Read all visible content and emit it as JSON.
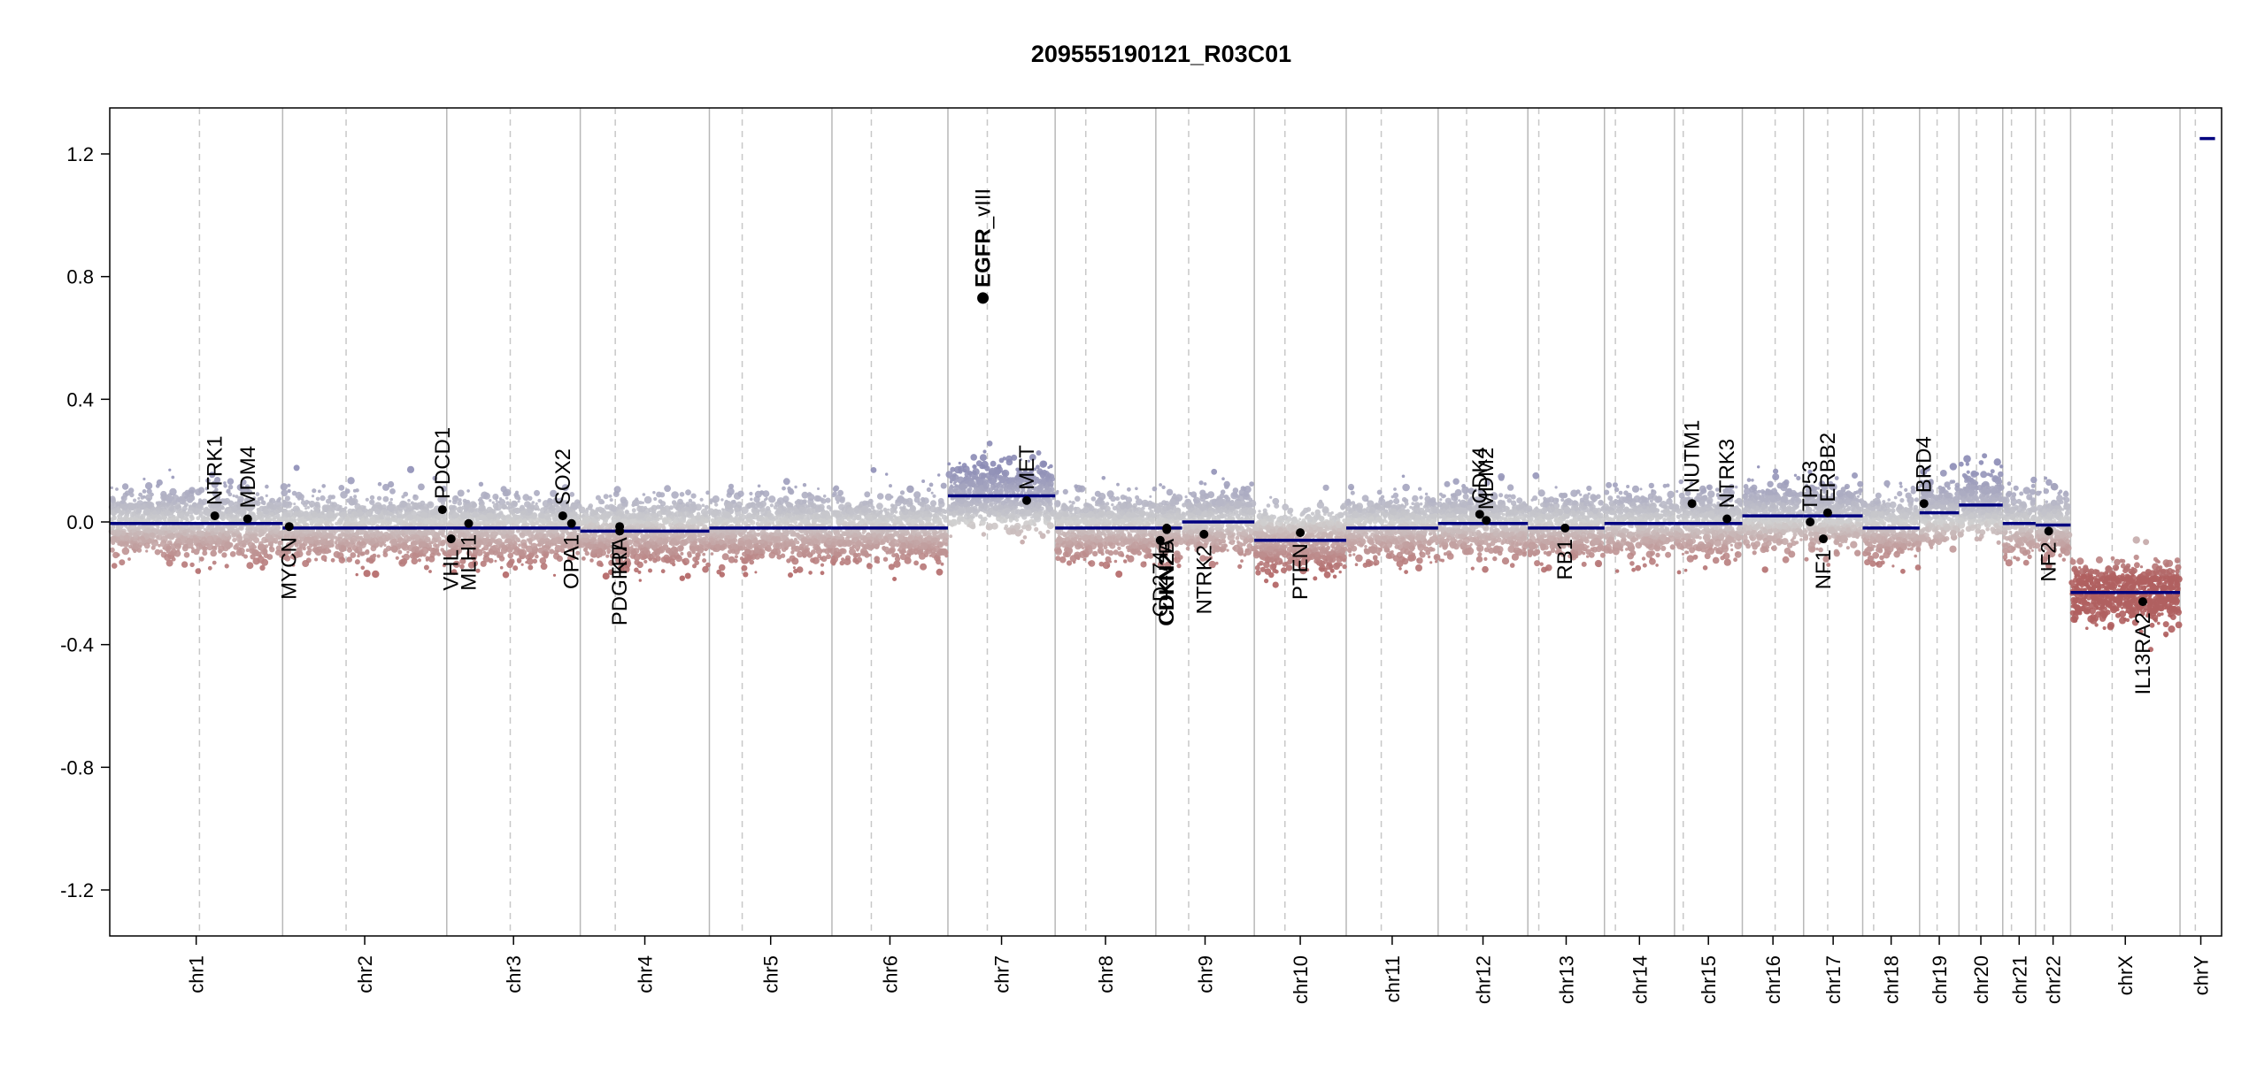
{
  "chart_data": {
    "type": "scatter",
    "title": "209555190121_R03C01",
    "xlabel": "",
    "ylabel": "",
    "ylim": [
      -1.35,
      1.35
    ],
    "yticks": [
      "1.2",
      "0.8",
      "0.4",
      "0.0",
      "-0.4",
      "-0.8",
      "-1.2"
    ],
    "ytick_values": [
      1.2,
      0.8,
      0.4,
      0.0,
      -0.4,
      -0.8,
      -1.2
    ],
    "chromosomes": [
      {
        "name": "chr1",
        "span": [
          0.0,
          7.9
        ],
        "centromere": 4.1,
        "segments": [
          {
            "from": 0.0,
            "to": 7.9,
            "value": -0.005
          }
        ]
      },
      {
        "name": "chr2",
        "span": [
          7.9,
          15.4
        ],
        "centromere": 10.8,
        "segments": [
          {
            "from": 7.9,
            "to": 15.4,
            "value": -0.02
          }
        ]
      },
      {
        "name": "chr3",
        "span": [
          15.4,
          21.5
        ],
        "centromere": 18.3,
        "segments": [
          {
            "from": 15.4,
            "to": 21.5,
            "value": -0.02
          }
        ]
      },
      {
        "name": "chr4",
        "span": [
          21.5,
          27.4
        ],
        "centromere": 23.1,
        "segments": [
          {
            "from": 21.5,
            "to": 27.4,
            "value": -0.03
          }
        ]
      },
      {
        "name": "chr5",
        "span": [
          27.4,
          33.0
        ],
        "centromere": 28.9,
        "segments": [
          {
            "from": 27.4,
            "to": 33.0,
            "value": -0.02
          }
        ]
      },
      {
        "name": "chr6",
        "span": [
          33.0,
          38.3
        ],
        "centromere": 34.8,
        "segments": [
          {
            "from": 33.0,
            "to": 38.3,
            "value": -0.02
          }
        ]
      },
      {
        "name": "chr7",
        "span": [
          38.3,
          43.2
        ],
        "centromere": 40.1,
        "segments": [
          {
            "from": 38.3,
            "to": 43.2,
            "value": 0.085
          }
        ]
      },
      {
        "name": "chr8",
        "span": [
          43.2,
          47.8
        ],
        "centromere": 44.6,
        "segments": [
          {
            "from": 43.2,
            "to": 47.8,
            "value": -0.02
          }
        ]
      },
      {
        "name": "chr9",
        "span": [
          47.8,
          52.3
        ],
        "centromere": 49.3,
        "segments": [
          {
            "from": 47.8,
            "to": 49.0,
            "value": -0.02
          },
          {
            "from": 49.0,
            "to": 52.3,
            "value": 0.0
          }
        ]
      },
      {
        "name": "chr10",
        "span": [
          52.3,
          56.5
        ],
        "centromere": 53.7,
        "segments": [
          {
            "from": 52.3,
            "to": 56.5,
            "value": -0.06
          }
        ]
      },
      {
        "name": "chr11",
        "span": [
          56.5,
          60.7
        ],
        "centromere": 58.1,
        "segments": [
          {
            "from": 56.5,
            "to": 60.7,
            "value": -0.02
          }
        ]
      },
      {
        "name": "chr12",
        "span": [
          60.7,
          64.8
        ],
        "centromere": 62.0,
        "segments": [
          {
            "from": 60.7,
            "to": 64.8,
            "value": -0.005
          }
        ]
      },
      {
        "name": "chr13",
        "span": [
          64.8,
          68.3
        ],
        "centromere": 65.3,
        "segments": [
          {
            "from": 64.8,
            "to": 68.3,
            "value": -0.02
          }
        ]
      },
      {
        "name": "chr14",
        "span": [
          68.3,
          71.5
        ],
        "centromere": 68.8,
        "segments": [
          {
            "from": 68.3,
            "to": 71.5,
            "value": -0.005
          }
        ]
      },
      {
        "name": "chr15",
        "span": [
          71.5,
          74.6
        ],
        "centromere": 71.9,
        "segments": [
          {
            "from": 71.5,
            "to": 74.6,
            "value": -0.005
          }
        ]
      },
      {
        "name": "chr16",
        "span": [
          74.6,
          77.4
        ],
        "centromere": 76.1,
        "segments": [
          {
            "from": 74.6,
            "to": 77.4,
            "value": 0.02
          }
        ]
      },
      {
        "name": "chr17",
        "span": [
          77.4,
          80.1
        ],
        "centromere": 78.5,
        "segments": [
          {
            "from": 77.4,
            "to": 80.1,
            "value": 0.02
          }
        ]
      },
      {
        "name": "chr18",
        "span": [
          80.1,
          82.7
        ],
        "centromere": 80.6,
        "segments": [
          {
            "from": 80.1,
            "to": 82.7,
            "value": -0.02
          }
        ]
      },
      {
        "name": "chr19",
        "span": [
          82.7,
          84.5
        ],
        "centromere": 83.5,
        "segments": [
          {
            "from": 82.7,
            "to": 84.5,
            "value": 0.03
          }
        ]
      },
      {
        "name": "chr20",
        "span": [
          84.5,
          86.5
        ],
        "centromere": 85.3,
        "segments": [
          {
            "from": 84.5,
            "to": 86.5,
            "value": 0.055
          }
        ]
      },
      {
        "name": "chr21",
        "span": [
          86.5,
          88.0
        ],
        "centromere": 86.9,
        "segments": [
          {
            "from": 86.5,
            "to": 88.0,
            "value": -0.005
          }
        ]
      },
      {
        "name": "chr22",
        "span": [
          88.0,
          89.6
        ],
        "centromere": 88.4,
        "segments": [
          {
            "from": 88.0,
            "to": 89.6,
            "value": -0.01
          }
        ]
      },
      {
        "name": "chrX",
        "span": [
          89.6,
          94.6
        ],
        "centromere": 91.5,
        "segments": [
          {
            "from": 89.6,
            "to": 94.6,
            "value": -0.23
          }
        ]
      },
      {
        "name": "chrY",
        "span": [
          94.6,
          96.5
        ],
        "centromere": 95.3,
        "segments": [
          {
            "from": 95.5,
            "to": 96.2,
            "value": 1.25
          }
        ]
      }
    ],
    "genes": [
      {
        "name": "NTRK1",
        "x": 4.8,
        "value": 0.02,
        "side": "above"
      },
      {
        "name": "MDM4",
        "x": 6.3,
        "value": 0.01,
        "side": "above"
      },
      {
        "name": "MYCN",
        "x": 8.2,
        "value": -0.015,
        "side": "below"
      },
      {
        "name": "PDCD1",
        "x": 15.2,
        "value": 0.04,
        "side": "above"
      },
      {
        "name": "VHL",
        "x": 15.6,
        "value": -0.055,
        "side": "below"
      },
      {
        "name": "MLH1",
        "x": 16.4,
        "value": -0.005,
        "side": "below"
      },
      {
        "name": "SOX2",
        "x": 20.7,
        "value": 0.02,
        "side": "above"
      },
      {
        "name": "OPA1",
        "x": 21.1,
        "value": -0.005,
        "side": "below"
      },
      {
        "name": "PDGFRA",
        "x": 23.3,
        "value": -0.015,
        "side": "below"
      },
      {
        "name": "KIT",
        "x": 23.3,
        "value": -0.03,
        "side": "below"
      },
      {
        "name": "EGFR",
        "x": 39.9,
        "value": 0.73,
        "side": "above",
        "bold": true
      },
      {
        "name": "EGFR_vIII",
        "x": 39.9,
        "value": 0.73,
        "side": "above"
      },
      {
        "name": "MET",
        "x": 41.9,
        "value": 0.07,
        "side": "above"
      },
      {
        "name": "CD274",
        "x": 48.0,
        "value": -0.06,
        "side": "below"
      },
      {
        "name": "CDKN2A",
        "x": 48.3,
        "value": -0.02,
        "side": "below"
      },
      {
        "name": "CDKN2B",
        "x": 48.3,
        "value": -0.025,
        "side": "below"
      },
      {
        "name": "NTRK2",
        "x": 50.0,
        "value": -0.04,
        "side": "below"
      },
      {
        "name": "PTEN",
        "x": 54.4,
        "value": -0.035,
        "side": "below"
      },
      {
        "name": "CDK4",
        "x": 62.6,
        "value": 0.025,
        "side": "above"
      },
      {
        "name": "MDM2",
        "x": 62.9,
        "value": 0.005,
        "side": "above"
      },
      {
        "name": "RB1",
        "x": 66.5,
        "value": -0.02,
        "side": "below"
      },
      {
        "name": "NUTM1",
        "x": 72.3,
        "value": 0.06,
        "side": "above"
      },
      {
        "name": "NTRK3",
        "x": 73.9,
        "value": 0.01,
        "side": "above"
      },
      {
        "name": "TP53",
        "x": 77.7,
        "value": 0.0,
        "side": "above"
      },
      {
        "name": "NF1",
        "x": 78.3,
        "value": -0.055,
        "side": "below"
      },
      {
        "name": "ERBB2",
        "x": 78.5,
        "value": 0.03,
        "side": "above"
      },
      {
        "name": "BRD4",
        "x": 82.9,
        "value": 0.06,
        "side": "above"
      },
      {
        "name": "NF2",
        "x": 88.6,
        "value": -0.03,
        "side": "below"
      },
      {
        "name": "IL13RA2",
        "x": 92.9,
        "value": -0.26,
        "side": "below"
      }
    ],
    "colors": {
      "gain": "#8b8bb5",
      "neutral": "#cfcfcf",
      "loss": "#b06060",
      "segment": "#00007f",
      "point": "#000000",
      "chrom_divider": "#b8b8b8",
      "centromere": "#c8c8c8"
    }
  }
}
